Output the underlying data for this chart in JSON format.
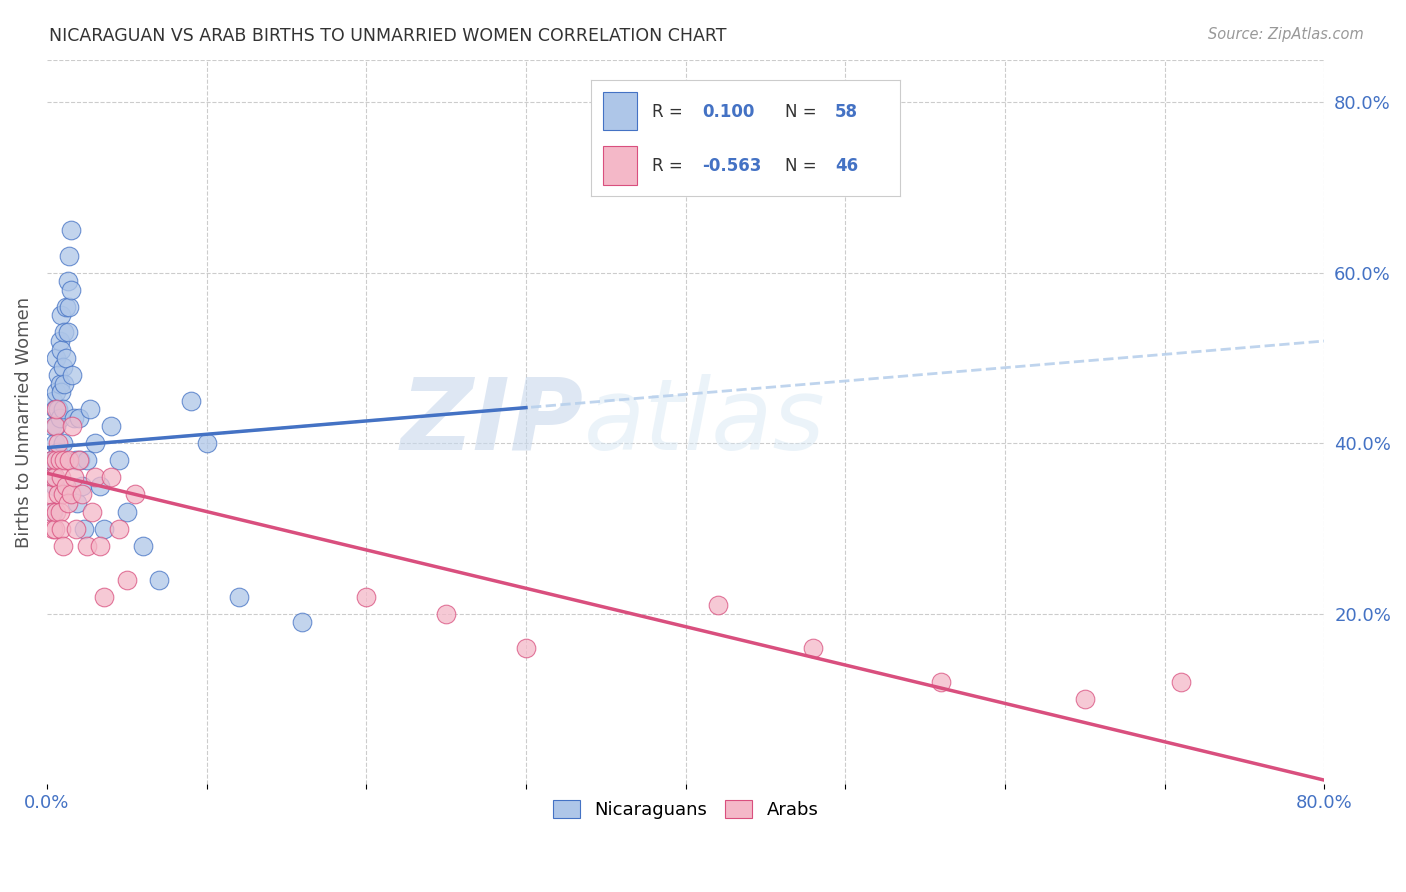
{
  "title": "NICARAGUAN VS ARAB BIRTHS TO UNMARRIED WOMEN CORRELATION CHART",
  "source": "Source: ZipAtlas.com",
  "ylabel": "Births to Unmarried Women",
  "xlim": [
    0.0,
    0.8
  ],
  "ylim": [
    0.0,
    0.85
  ],
  "r_nicaraguan": 0.1,
  "n_nicaraguan": 58,
  "r_arab": -0.563,
  "n_arab": 46,
  "color_nicaraguan": "#aec6e8",
  "color_arab": "#f4b8c8",
  "line_color_nicaraguan": "#4472c4",
  "line_color_arab": "#d94f7e",
  "line_dashed_color": "#b8d0ec",
  "background_color": "#ffffff",
  "grid_color": "#cccccc",
  "watermark_color": "#d0dff0",
  "title_color": "#333333",
  "axis_label_color": "#555555",
  "tick_label_color_blue": "#4472c4",
  "nic_line_x0": 0.0,
  "nic_line_y0": 0.395,
  "nic_line_x1": 0.8,
  "nic_line_y1": 0.52,
  "arab_line_x0": 0.0,
  "arab_line_y0": 0.365,
  "arab_line_x1": 0.8,
  "arab_line_y1": 0.005,
  "nicaraguan_x": [
    0.002,
    0.003,
    0.003,
    0.004,
    0.004,
    0.004,
    0.005,
    0.005,
    0.005,
    0.005,
    0.006,
    0.006,
    0.006,
    0.007,
    0.007,
    0.007,
    0.008,
    0.008,
    0.008,
    0.008,
    0.009,
    0.009,
    0.009,
    0.01,
    0.01,
    0.01,
    0.011,
    0.011,
    0.012,
    0.012,
    0.013,
    0.013,
    0.014,
    0.014,
    0.015,
    0.015,
    0.016,
    0.017,
    0.018,
    0.019,
    0.02,
    0.021,
    0.022,
    0.023,
    0.025,
    0.027,
    0.03,
    0.033,
    0.036,
    0.04,
    0.045,
    0.05,
    0.06,
    0.07,
    0.09,
    0.1,
    0.12,
    0.16
  ],
  "nicaraguan_y": [
    0.37,
    0.42,
    0.38,
    0.45,
    0.36,
    0.32,
    0.4,
    0.44,
    0.38,
    0.35,
    0.5,
    0.46,
    0.42,
    0.48,
    0.44,
    0.39,
    0.52,
    0.47,
    0.43,
    0.38,
    0.55,
    0.51,
    0.46,
    0.49,
    0.44,
    0.4,
    0.53,
    0.47,
    0.56,
    0.5,
    0.59,
    0.53,
    0.62,
    0.56,
    0.65,
    0.58,
    0.48,
    0.43,
    0.38,
    0.33,
    0.43,
    0.38,
    0.35,
    0.3,
    0.38,
    0.44,
    0.4,
    0.35,
    0.3,
    0.42,
    0.38,
    0.32,
    0.28,
    0.24,
    0.45,
    0.4,
    0.22,
    0.19
  ],
  "arab_x": [
    0.002,
    0.003,
    0.003,
    0.004,
    0.004,
    0.005,
    0.005,
    0.005,
    0.006,
    0.006,
    0.006,
    0.007,
    0.007,
    0.008,
    0.008,
    0.009,
    0.009,
    0.01,
    0.01,
    0.011,
    0.012,
    0.013,
    0.014,
    0.015,
    0.016,
    0.017,
    0.018,
    0.02,
    0.022,
    0.025,
    0.028,
    0.03,
    0.033,
    0.036,
    0.04,
    0.045,
    0.05,
    0.055,
    0.2,
    0.25,
    0.3,
    0.42,
    0.48,
    0.56,
    0.65,
    0.71
  ],
  "arab_y": [
    0.34,
    0.38,
    0.32,
    0.36,
    0.3,
    0.42,
    0.36,
    0.3,
    0.44,
    0.38,
    0.32,
    0.4,
    0.34,
    0.38,
    0.32,
    0.36,
    0.3,
    0.34,
    0.28,
    0.38,
    0.35,
    0.33,
    0.38,
    0.34,
    0.42,
    0.36,
    0.3,
    0.38,
    0.34,
    0.28,
    0.32,
    0.36,
    0.28,
    0.22,
    0.36,
    0.3,
    0.24,
    0.34,
    0.22,
    0.2,
    0.16,
    0.21,
    0.16,
    0.12,
    0.1,
    0.12
  ]
}
